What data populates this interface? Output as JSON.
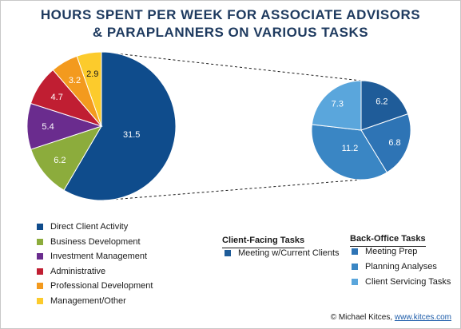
{
  "title_line1": "HOURS SPENT PER WEEK FOR ASSOCIATE ADVISORS",
  "title_line2": "& PARAPLANNERS ON VARIOUS TASKS",
  "chart_data": [
    {
      "type": "pie",
      "categories": [
        "Direct Client Activity",
        "Business Development",
        "Investment Management",
        "Administrative",
        "Professional Development",
        "Management/Other"
      ],
      "values": [
        31.5,
        6.2,
        5.4,
        4.7,
        3.2,
        2.9
      ],
      "colors": [
        "#0f4c8c",
        "#8cac3c",
        "#6a2c8e",
        "#c01e32",
        "#f39a1e",
        "#fccb2c"
      ]
    },
    {
      "type": "pie",
      "categories": [
        "Meeting w/Current Clients",
        "Meeting Prep",
        "Planning Analyses",
        "Client Servicing Tasks"
      ],
      "values": [
        6.2,
        6.8,
        11.2,
        7.3
      ],
      "colors": [
        "#1f5c99",
        "#2e74b5",
        "#3a86c4",
        "#5aa6dc"
      ]
    }
  ],
  "legend": [
    {
      "label": "Direct Client Activity",
      "color": "#0f4c8c"
    },
    {
      "label": "Business Development",
      "color": "#8cac3c"
    },
    {
      "label": "Investment Management",
      "color": "#6a2c8e"
    },
    {
      "label": "Administrative",
      "color": "#c01e32"
    },
    {
      "label": "Professional Development",
      "color": "#f39a1e"
    },
    {
      "label": "Management/Other",
      "color": "#fccb2c"
    }
  ],
  "client_facing": {
    "title": "Client-Facing Tasks",
    "items": [
      {
        "label": "Meeting w/Current Clients",
        "color": "#1f5c99"
      }
    ]
  },
  "back_office": {
    "title": "Back-Office Tasks",
    "items": [
      {
        "label": "Meeting Prep",
        "color": "#2e74b5"
      },
      {
        "label": "Planning Analyses",
        "color": "#3a86c4"
      },
      {
        "label": "Client Servicing Tasks",
        "color": "#5aa6dc"
      }
    ]
  },
  "credit": {
    "prefix": "© Michael Kitces, ",
    "link": "www.kitces.com"
  }
}
